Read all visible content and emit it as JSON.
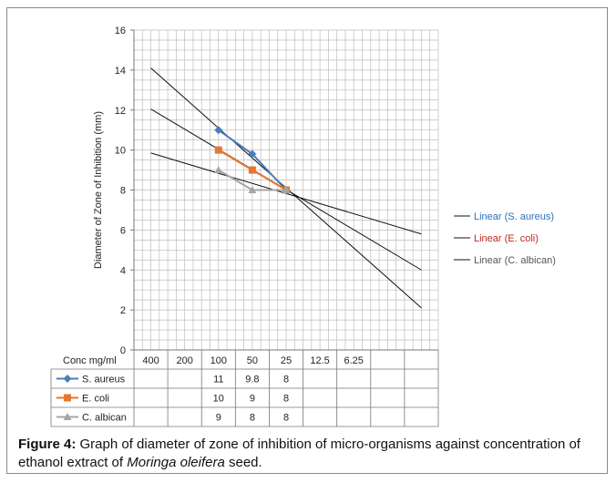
{
  "chart_data": {
    "type": "line",
    "ylabel": "Diameter of Zone of Inhibition (mm)",
    "ylim": [
      0,
      16
    ],
    "yticks": [
      0,
      2,
      4,
      6,
      8,
      10,
      12,
      14,
      16
    ],
    "grid": true,
    "legend_position": "right",
    "categories": [
      "400",
      "200",
      "100",
      "50",
      "25",
      "12.5",
      "6.25",
      "",
      ""
    ],
    "table_header": "Conc mg/ml",
    "series": [
      {
        "name": "S. aureus",
        "color": "#4a7ebb",
        "marker": "diamond",
        "values": [
          null,
          null,
          11,
          9.8,
          8,
          null,
          null,
          null,
          null
        ],
        "labels": [
          "",
          "",
          "11",
          "9.8",
          "8",
          "",
          "",
          "",
          ""
        ]
      },
      {
        "name": "E. coli",
        "color": "#e8772e",
        "marker": "square",
        "values": [
          null,
          null,
          10,
          9,
          8,
          null,
          null,
          null,
          null
        ],
        "labels": [
          "",
          "",
          "10",
          "9",
          "8",
          "",
          "",
          "",
          ""
        ]
      },
      {
        "name": "C. albican",
        "color": "#a5a5a5",
        "marker": "triangle",
        "values": [
          null,
          null,
          9,
          8,
          8,
          null,
          null,
          null,
          null
        ],
        "labels": [
          "",
          "",
          "9",
          "8",
          "8",
          "",
          "",
          "",
          ""
        ]
      }
    ],
    "trendlines": [
      {
        "name": "Linear (S. aureus)",
        "label_color": "#2e6fb8",
        "start": 14.1,
        "end": 2.1
      },
      {
        "name": "Linear (E. coli)",
        "label_color": "#c0281e",
        "start": 12.05,
        "end": 4.0
      },
      {
        "name": "Linear (C. albican)",
        "label_color": "#555555",
        "start": 9.85,
        "end": 5.8
      }
    ]
  },
  "caption": {
    "label": "Figure 4:",
    "text_before": " Graph of diameter of zone of inhibition of micro-organisms against concentration of ethanol extract of ",
    "italic": "Moringa oleifera",
    "text_after": " seed."
  }
}
